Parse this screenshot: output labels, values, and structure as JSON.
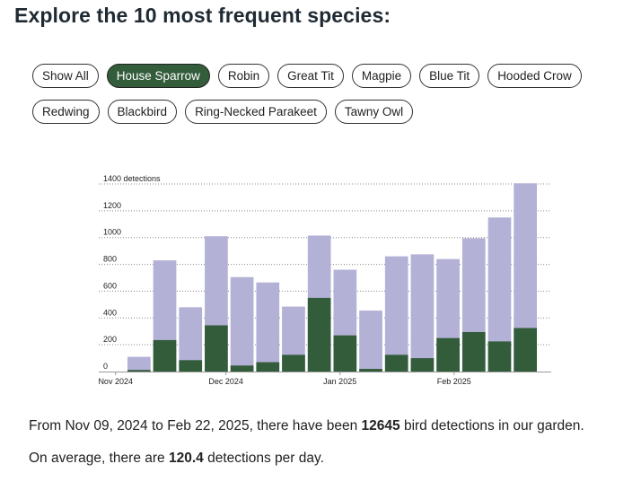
{
  "heading": "Explore the 10 most frequent species:",
  "species_buttons": [
    {
      "label": "Show All",
      "active": false
    },
    {
      "label": "House Sparrow",
      "active": true
    },
    {
      "label": "Robin",
      "active": false
    },
    {
      "label": "Great Tit",
      "active": false
    },
    {
      "label": "Magpie",
      "active": false
    },
    {
      "label": "Blue Tit",
      "active": false
    },
    {
      "label": "Hooded Crow",
      "active": false
    },
    {
      "label": "Redwing",
      "active": false
    },
    {
      "label": "Blackbird",
      "active": false
    },
    {
      "label": "Ring-Necked Parakeet",
      "active": false
    },
    {
      "label": "Tawny Owl",
      "active": false
    }
  ],
  "colors": {
    "total": "#b3b1d6",
    "selected": "#335c3b",
    "active_button": "#335c3b"
  },
  "chart_data": {
    "type": "bar",
    "x_axis": "weekly dates",
    "x_tick_labels": [
      {
        "label": "Nov 2024",
        "date": "2024-11-01"
      },
      {
        "label": "Dec 2024",
        "date": "2024-12-01"
      },
      {
        "label": "Jan 2025",
        "date": "2025-01-01"
      },
      {
        "label": "Feb 2025",
        "date": "2025-02-01"
      }
    ],
    "y_tick_labels": [
      "0",
      "200",
      "400",
      "600",
      "800",
      "1000",
      "1200",
      "1400 detections"
    ],
    "y_ticks": [
      0,
      200,
      400,
      600,
      800,
      1000,
      1200,
      1400
    ],
    "ylim": [
      0,
      1400
    ],
    "grid": "horizontal dotted",
    "week_start_dates": [
      "2024-11-04",
      "2024-11-11",
      "2024-11-18",
      "2024-11-25",
      "2024-12-02",
      "2024-12-09",
      "2024-12-16",
      "2024-12-23",
      "2024-12-30",
      "2025-01-06",
      "2025-01-13",
      "2025-01-20",
      "2025-01-27",
      "2025-02-03",
      "2025-02-10",
      "2025-02-17"
    ],
    "series": [
      {
        "values": [
          110,
          830,
          480,
          1010,
          705,
          665,
          485,
          1015,
          760,
          455,
          860,
          875,
          840,
          995,
          1150,
          1405
        ]
      },
      {
        "values": [
          12,
          235,
          85,
          345,
          45,
          70,
          125,
          550,
          270,
          20,
          125,
          100,
          250,
          295,
          225,
          325
        ]
      }
    ]
  },
  "summary": {
    "line1_prefix": "From Nov 09, 2024 to Feb 22, 2025, there have been ",
    "line1_value": "12645",
    "line1_suffix": " bird detections in our garden.",
    "line2_prefix": "On average, there are ",
    "line2_value": "120.4",
    "line2_suffix": " detections per day."
  }
}
